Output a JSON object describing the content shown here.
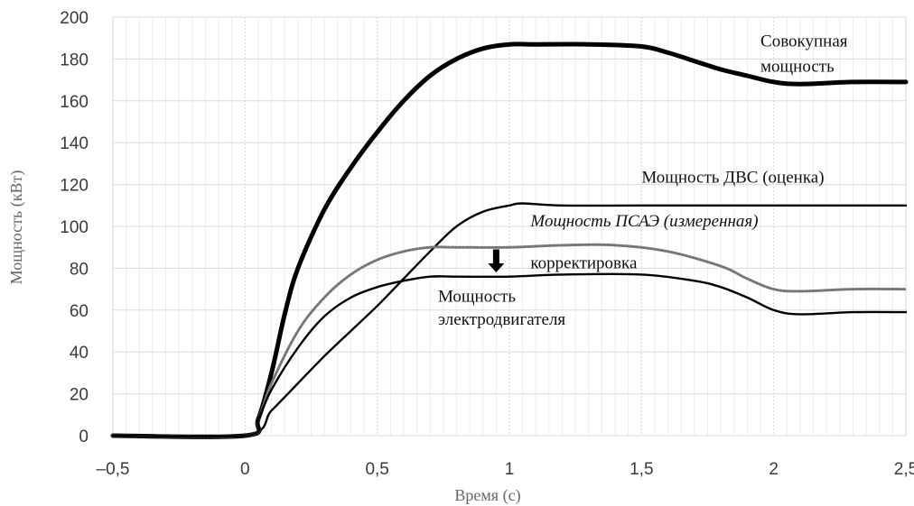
{
  "chart_data": {
    "type": "line",
    "xlabel": "Время (с)",
    "ylabel": "Мощность (кВт)",
    "xlim": [
      -0.5,
      2.5
    ],
    "ylim": [
      0,
      200
    ],
    "xticks": [
      -0.5,
      0,
      0.5,
      1,
      1.5,
      2,
      2.5
    ],
    "xtick_labels": [
      "–0,5",
      "0",
      "0,5",
      "1",
      "1,5",
      "2",
      "2,5"
    ],
    "yticks": [
      0,
      20,
      40,
      60,
      80,
      100,
      120,
      140,
      160,
      180,
      200
    ],
    "ytick_labels": [
      "0",
      "20",
      "40",
      "60",
      "80",
      "100",
      "120",
      "140",
      "160",
      "180",
      "200"
    ],
    "grid": true,
    "series": [
      {
        "name": "Совокупная мощность",
        "style": "thick",
        "color": "#000000",
        "x": [
          -0.5,
          0,
          0.05,
          0.1,
          0.15,
          0.2,
          0.3,
          0.4,
          0.5,
          0.6,
          0.7,
          0.8,
          0.9,
          1.0,
          1.1,
          1.3,
          1.5,
          1.6,
          1.7,
          1.8,
          1.9,
          2.0,
          2.1,
          2.3,
          2.5
        ],
        "y": [
          0,
          0,
          8,
          30,
          58,
          80,
          108,
          128,
          145,
          160,
          172,
          180,
          185,
          187,
          187,
          187,
          186,
          183,
          179,
          175,
          172,
          169,
          168,
          169,
          169
        ]
      },
      {
        "name": "Мощность ДВС (оценка)",
        "style": "solid",
        "color": "#000000",
        "x": [
          -0.5,
          0,
          0.1,
          0.2,
          0.3,
          0.4,
          0.5,
          0.6,
          0.7,
          0.8,
          0.9,
          1.0,
          1.05,
          1.2,
          1.5,
          2.0,
          2.5
        ],
        "y": [
          0,
          0,
          12,
          25,
          38,
          50,
          62,
          75,
          88,
          100,
          107,
          110,
          111,
          110,
          110,
          110,
          110
        ]
      },
      {
        "name": "Мощность ПСАЭ (измеренная)",
        "style": "dotted",
        "color": "#777777",
        "x": [
          -0.5,
          0,
          0.05,
          0.1,
          0.2,
          0.3,
          0.4,
          0.5,
          0.6,
          0.7,
          0.8,
          1.0,
          1.2,
          1.4,
          1.6,
          1.8,
          1.9,
          2.0,
          2.1,
          2.3,
          2.5
        ],
        "y": [
          0,
          0,
          8,
          25,
          50,
          66,
          77,
          84,
          88,
          90,
          90,
          90,
          91,
          91,
          88,
          81,
          75,
          70,
          69,
          70,
          70
        ]
      },
      {
        "name": "Мощность электродвигателя",
        "style": "solid",
        "color": "#000000",
        "x": [
          -0.5,
          0,
          0.05,
          0.1,
          0.2,
          0.3,
          0.4,
          0.5,
          0.6,
          0.7,
          0.8,
          1.0,
          1.2,
          1.5,
          1.7,
          1.8,
          1.9,
          2.0,
          2.1,
          2.3,
          2.5
        ],
        "y": [
          0,
          0,
          8,
          22,
          42,
          57,
          66,
          71,
          74,
          76,
          76,
          76,
          77,
          77,
          74,
          71,
          66,
          60,
          58,
          59,
          59
        ]
      }
    ],
    "annotations": [
      {
        "text": "Совокупная",
        "x": 1.95,
        "y": 186,
        "italic": false
      },
      {
        "text": "мощность",
        "x": 1.95,
        "y": 174,
        "italic": false
      },
      {
        "text": "Мощность ДВС (оценка)",
        "x": 1.5,
        "y": 121,
        "italic": false
      },
      {
        "text": "Мощность ПСАЭ (измеренная)",
        "x": 1.08,
        "y": 100,
        "italic": true
      },
      {
        "text": "корректировка",
        "x": 1.08,
        "y": 80,
        "italic": false
      },
      {
        "text": "Мощность",
        "x": 0.73,
        "y": 64,
        "italic": false
      },
      {
        "text": "электродвигателя",
        "x": 0.73,
        "y": 53,
        "italic": false
      }
    ],
    "correction_arrow": {
      "x": 0.95,
      "y_from": 89,
      "y_to": 78
    }
  }
}
